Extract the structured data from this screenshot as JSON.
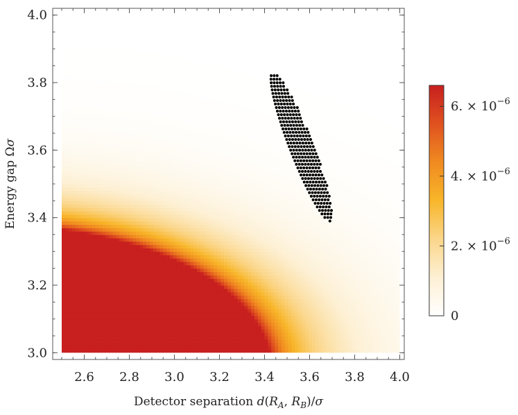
{
  "chart_data": {
    "type": "heatmap",
    "title": "",
    "xlabel": "Detector separation  d(R_A, R_B)/σ",
    "ylabel": "Energy gap  Ωσ",
    "xlim": [
      2.46,
      4.02
    ],
    "ylim": [
      2.98,
      4.02
    ],
    "data_extent": {
      "x": [
        2.5,
        4.0
      ],
      "y": [
        3.0,
        4.0
      ]
    },
    "x_ticks": [
      2.6,
      2.8,
      3.0,
      3.2,
      3.4,
      3.6,
      3.8,
      4.0
    ],
    "x_tick_labels": [
      "2.6",
      "2.8",
      "3.0",
      "3.2",
      "3.4",
      "3.6",
      "3.8",
      "4.0"
    ],
    "y_ticks": [
      3.0,
      3.2,
      3.4,
      3.6,
      3.8,
      4.0
    ],
    "y_tick_labels": [
      "3.0",
      "3.2",
      "3.4",
      "3.6",
      "3.8",
      "4.0"
    ],
    "colorbar": {
      "min": 0,
      "max": 6.6e-06,
      "ticks": [
        0,
        2e-06,
        4e-06,
        6e-06
      ],
      "tick_labels": [
        {
          "mantissa": "0",
          "exponent": ""
        },
        {
          "mantissa": "2. × 10",
          "exponent": "−6"
        },
        {
          "mantissa": "4. × 10",
          "exponent": "−6"
        },
        {
          "mantissa": "6. × 10",
          "exponent": "−6"
        }
      ],
      "colors": [
        "#ffffff",
        "#fdf0d4",
        "#fbd68a",
        "#f8b62a",
        "#f08a20",
        "#e0521f",
        "#c81f1f"
      ]
    },
    "highlight_region": {
      "marker": "dot",
      "color": "#000000",
      "x_range": [
        3.44,
        3.69
      ],
      "y_range": [
        3.39,
        3.83
      ],
      "centerline": [
        [
          3.44,
          3.83
        ],
        [
          3.69,
          3.39
        ]
      ],
      "width_x": 0.055,
      "step_x": 0.0133,
      "step_y": 0.0105
    }
  }
}
